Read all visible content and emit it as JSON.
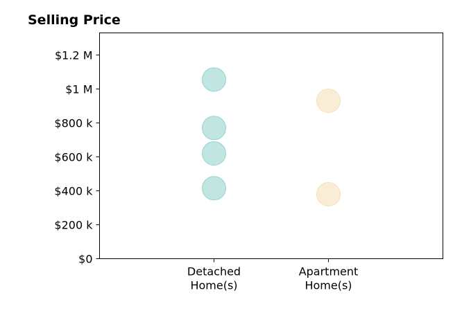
{
  "chart_data": {
    "type": "scatter",
    "title": "Selling Price",
    "xlabel": "",
    "ylabel": "",
    "categories": [
      [
        "Detached",
        "Home(s)"
      ],
      [
        "Apartment",
        "Home(s)"
      ]
    ],
    "x_range": [
      -1,
      2
    ],
    "ylim": [
      0,
      1330000
    ],
    "y_ticks": [
      {
        "value": 0,
        "label": "$0"
      },
      {
        "value": 200000,
        "label": "$200 k"
      },
      {
        "value": 400000,
        "label": "$400 k"
      },
      {
        "value": 600000,
        "label": "$600 k"
      },
      {
        "value": 800000,
        "label": "$800 k"
      },
      {
        "value": 1000000,
        "label": "$1 M"
      },
      {
        "value": 1200000,
        "label": "$1.2 M"
      }
    ],
    "grid": false,
    "series": [
      {
        "category_index": 0,
        "color": "#8ecfc9",
        "values": [
          1055000,
          770000,
          620000,
          415000
        ]
      },
      {
        "category_index": 1,
        "color": "#f5deb3",
        "values": [
          930000,
          380000
        ]
      }
    ]
  }
}
